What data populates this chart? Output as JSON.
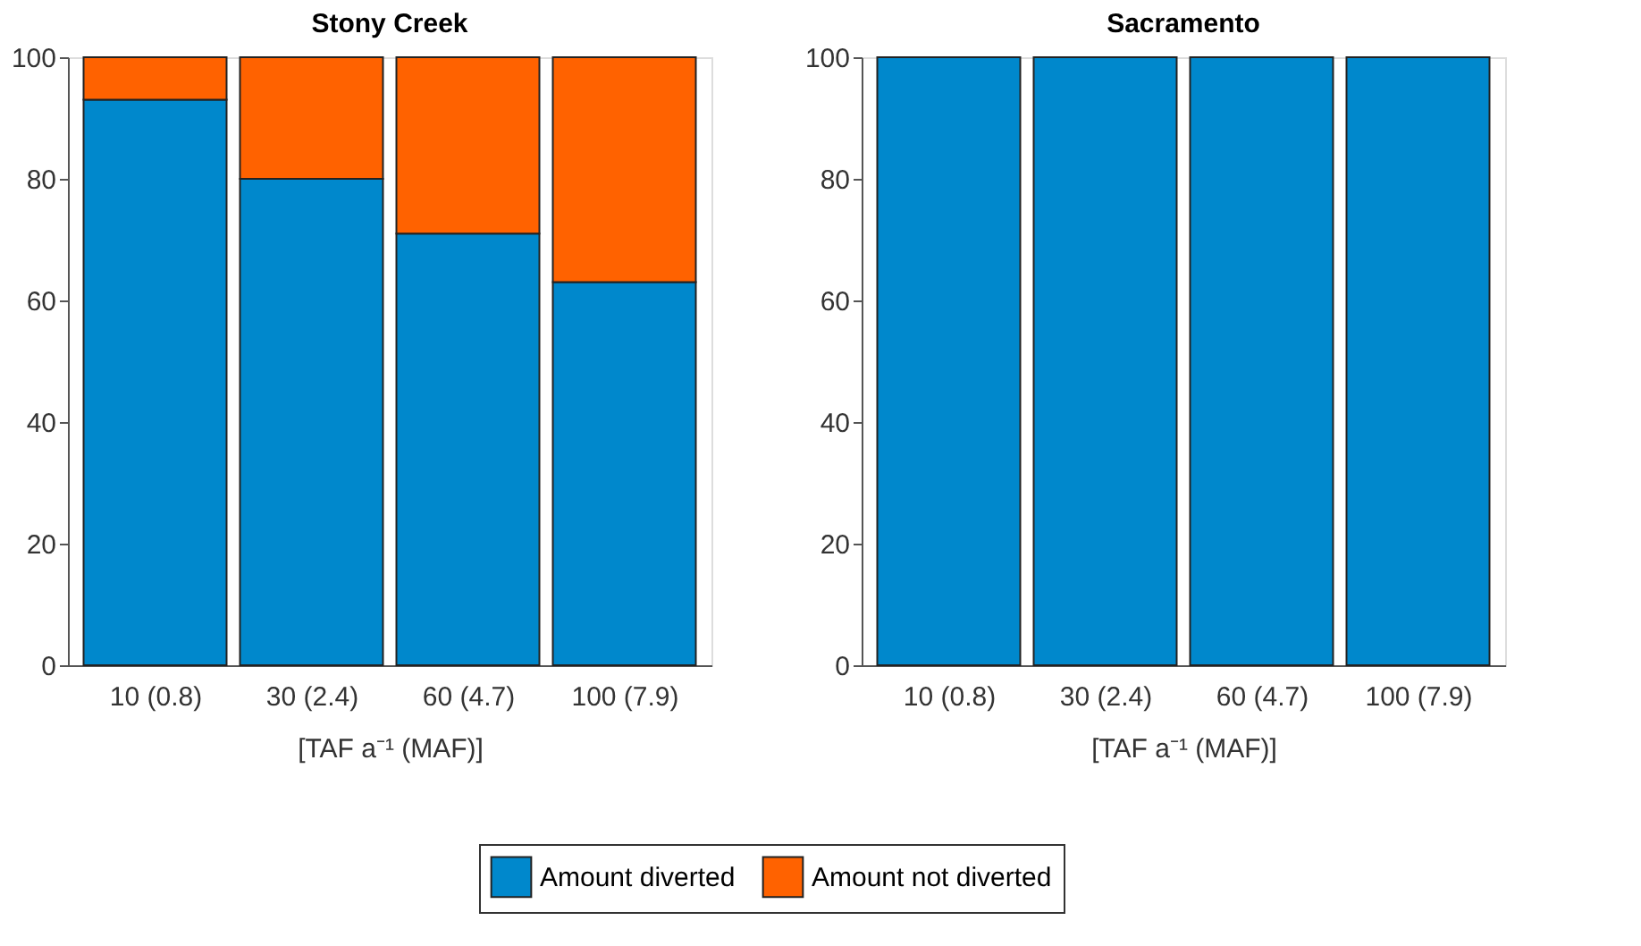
{
  "chart_data": [
    {
      "type": "bar",
      "title": "Stony Creek",
      "xlabel": "[TAF a⁻¹ (MAF)]",
      "categories": [
        "10 (0.8)",
        "30 (2.4)",
        "60 (4.7)",
        "100 (7.9)"
      ],
      "stacked": true,
      "series": [
        {
          "name": "Amount diverted",
          "color": "#0088cc",
          "values": [
            93,
            80,
            71,
            63
          ]
        },
        {
          "name": "Amount not diverted",
          "color": "#ff6200",
          "values": [
            7,
            20,
            29,
            37
          ]
        }
      ],
      "ylim": [
        0,
        100
      ],
      "yticks": [
        0,
        20,
        40,
        60,
        80,
        100
      ],
      "grid": false,
      "legend": "bottom"
    },
    {
      "type": "bar",
      "title": "Sacramento",
      "xlabel": "[TAF a⁻¹ (MAF)]",
      "categories": [
        "10 (0.8)",
        "30 (2.4)",
        "60 (4.7)",
        "100 (7.9)"
      ],
      "stacked": true,
      "series": [
        {
          "name": "Amount diverted",
          "color": "#0088cc",
          "values": [
            100,
            100,
            100,
            100
          ]
        },
        {
          "name": "Amount not diverted",
          "color": "#ff6200",
          "values": [
            0,
            0,
            0,
            0
          ]
        }
      ],
      "ylim": [
        0,
        100
      ],
      "yticks": [
        0,
        20,
        40,
        60,
        80,
        100
      ],
      "grid": false,
      "legend": "bottom"
    }
  ]
}
